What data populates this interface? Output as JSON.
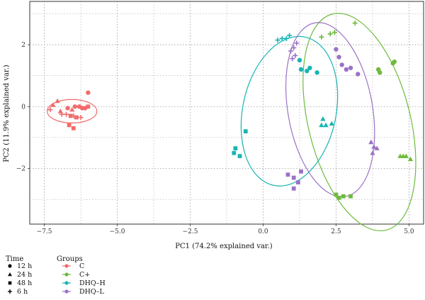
{
  "chart_data": {
    "type": "scatter",
    "title": "",
    "xlabel": "PC1 (74.2% explained var.)",
    "ylabel": "PC2 (11.9% explained var.)",
    "xlim": [
      -8.0,
      5.5
    ],
    "ylim": [
      -3.8,
      3.4
    ],
    "x_ticks": [
      -7.5,
      -5.0,
      -2.5,
      0.0,
      2.5,
      5.0
    ],
    "x_tick_labels": [
      "−7.5",
      "−5.0",
      "−2.5",
      "0.0",
      "2.5",
      "5.0"
    ],
    "y_ticks": [
      -2,
      0,
      2
    ],
    "y_tick_labels": [
      "−2",
      "0",
      "2"
    ],
    "grid": true,
    "legend_placement": "bottom-left",
    "time_legend": {
      "title": "Time",
      "entries": [
        {
          "label": "12 h",
          "shape": "circle"
        },
        {
          "label": "24 h",
          "shape": "triangle"
        },
        {
          "label": "48 h",
          "shape": "square"
        },
        {
          "label": "6 h",
          "shape": "plus"
        }
      ]
    },
    "group_legend": {
      "title": "Groups",
      "entries": [
        {
          "label": "C",
          "color": "#f26b6b"
        },
        {
          "label": "C+",
          "color": "#6dbb3c"
        },
        {
          "label": "DHQ–H",
          "color": "#17b5b3"
        },
        {
          "label": "DHQ–L",
          "color": "#9b72c5"
        }
      ]
    },
    "series": [
      {
        "name": "C",
        "color": "#f26b6b",
        "ellipse": {
          "cx": -6.55,
          "cy": -0.15,
          "rx": 0.85,
          "ry": 0.38,
          "angle": 0
        },
        "points": [
          {
            "x": -6.0,
            "y": 0.45,
            "shape": "circle"
          },
          {
            "x": -6.7,
            "y": -0.05,
            "shape": "circle"
          },
          {
            "x": -6.45,
            "y": 0.0,
            "shape": "circle"
          },
          {
            "x": -6.3,
            "y": 0.0,
            "shape": "circle"
          },
          {
            "x": -6.2,
            "y": -0.05,
            "shape": "circle"
          },
          {
            "x": -6.1,
            "y": -0.05,
            "shape": "circle"
          },
          {
            "x": -7.2,
            "y": 0.05,
            "shape": "triangle"
          },
          {
            "x": -7.05,
            "y": 0.18,
            "shape": "triangle"
          },
          {
            "x": -6.55,
            "y": -0.1,
            "shape": "triangle"
          },
          {
            "x": -6.95,
            "y": -0.15,
            "shape": "triangle"
          },
          {
            "x": -6.0,
            "y": 0.0,
            "shape": "square"
          },
          {
            "x": -6.6,
            "y": -0.3,
            "shape": "square"
          },
          {
            "x": -6.4,
            "y": -0.35,
            "shape": "square"
          },
          {
            "x": -6.65,
            "y": -0.6,
            "shape": "square"
          },
          {
            "x": -6.5,
            "y": -0.7,
            "shape": "square"
          },
          {
            "x": -7.3,
            "y": -0.1,
            "shape": "plus"
          },
          {
            "x": -6.9,
            "y": -0.25,
            "shape": "plus"
          },
          {
            "x": -6.75,
            "y": -0.25,
            "shape": "plus"
          },
          {
            "x": -6.5,
            "y": -0.3,
            "shape": "plus"
          },
          {
            "x": -6.25,
            "y": -0.35,
            "shape": "plus"
          }
        ]
      },
      {
        "name": "C+",
        "color": "#6dbb3c",
        "ellipse": {
          "cx": 3.3,
          "cy": -0.5,
          "rx": 1.75,
          "ry": 3.6,
          "angle": -14
        },
        "points": [
          {
            "x": 3.95,
            "y": 1.2,
            "shape": "circle"
          },
          {
            "x": 4.0,
            "y": 1.1,
            "shape": "circle"
          },
          {
            "x": 4.5,
            "y": 1.45,
            "shape": "circle"
          },
          {
            "x": 4.45,
            "y": 1.4,
            "shape": "circle"
          },
          {
            "x": 4.7,
            "y": -1.6,
            "shape": "triangle"
          },
          {
            "x": 4.8,
            "y": -1.6,
            "shape": "triangle"
          },
          {
            "x": 4.9,
            "y": -1.6,
            "shape": "triangle"
          },
          {
            "x": 5.05,
            "y": -1.7,
            "shape": "triangle"
          },
          {
            "x": 2.5,
            "y": -2.85,
            "shape": "square"
          },
          {
            "x": 2.6,
            "y": -2.95,
            "shape": "square"
          },
          {
            "x": 2.75,
            "y": -2.9,
            "shape": "square"
          },
          {
            "x": 3.0,
            "y": -2.9,
            "shape": "square"
          },
          {
            "x": 2.3,
            "y": 2.35,
            "shape": "plus"
          },
          {
            "x": 2.45,
            "y": 2.4,
            "shape": "plus"
          },
          {
            "x": 2.0,
            "y": 2.25,
            "shape": "plus"
          },
          {
            "x": 3.15,
            "y": 2.7,
            "shape": "plus"
          }
        ]
      },
      {
        "name": "DHQ–H",
        "color": "#17b5b3",
        "ellipse": {
          "cx": 0.9,
          "cy": -0.15,
          "rx": 1.6,
          "ry": 2.45,
          "angle": 12
        },
        "points": [
          {
            "x": 1.25,
            "y": 1.5,
            "shape": "circle"
          },
          {
            "x": 1.3,
            "y": 1.2,
            "shape": "circle"
          },
          {
            "x": 1.5,
            "y": 1.15,
            "shape": "circle"
          },
          {
            "x": 1.6,
            "y": 1.25,
            "shape": "circle"
          },
          {
            "x": 1.85,
            "y": 1.1,
            "shape": "circle"
          },
          {
            "x": 2.0,
            "y": -0.6,
            "shape": "triangle"
          },
          {
            "x": 2.05,
            "y": -0.4,
            "shape": "triangle"
          },
          {
            "x": 2.15,
            "y": -0.6,
            "shape": "triangle"
          },
          {
            "x": 2.35,
            "y": -0.55,
            "shape": "triangle"
          },
          {
            "x": -0.6,
            "y": -0.8,
            "shape": "square"
          },
          {
            "x": -0.95,
            "y": -1.35,
            "shape": "square"
          },
          {
            "x": -1.0,
            "y": -1.5,
            "shape": "square"
          },
          {
            "x": -0.8,
            "y": -1.6,
            "shape": "square"
          },
          {
            "x": 0.5,
            "y": 2.15,
            "shape": "plus"
          },
          {
            "x": 0.65,
            "y": 2.2,
            "shape": "plus"
          },
          {
            "x": 0.8,
            "y": 2.2,
            "shape": "plus"
          },
          {
            "x": 0.9,
            "y": 2.3,
            "shape": "plus"
          }
        ]
      },
      {
        "name": "DHQ–L",
        "color": "#9b72c5",
        "ellipse": {
          "cx": 2.3,
          "cy": -0.1,
          "rx": 1.45,
          "ry": 2.85,
          "angle": -10
        },
        "points": [
          {
            "x": 2.5,
            "y": 1.85,
            "shape": "circle"
          },
          {
            "x": 2.6,
            "y": 1.6,
            "shape": "circle"
          },
          {
            "x": 2.7,
            "y": 1.35,
            "shape": "circle"
          },
          {
            "x": 2.85,
            "y": 1.2,
            "shape": "circle"
          },
          {
            "x": 3.0,
            "y": 1.25,
            "shape": "circle"
          },
          {
            "x": 3.25,
            "y": 1.05,
            "shape": "circle"
          },
          {
            "x": 3.7,
            "y": -1.15,
            "shape": "triangle"
          },
          {
            "x": 3.8,
            "y": -1.3,
            "shape": "triangle"
          },
          {
            "x": 3.75,
            "y": -1.5,
            "shape": "triangle"
          },
          {
            "x": 3.9,
            "y": -1.35,
            "shape": "triangle"
          },
          {
            "x": 0.85,
            "y": -2.2,
            "shape": "square"
          },
          {
            "x": 1.05,
            "y": -2.3,
            "shape": "square"
          },
          {
            "x": 1.2,
            "y": -2.45,
            "shape": "square"
          },
          {
            "x": 1.3,
            "y": -2.1,
            "shape": "square"
          },
          {
            "x": 1.05,
            "y": -2.65,
            "shape": "square"
          },
          {
            "x": 1.15,
            "y": 2.05,
            "shape": "plus"
          },
          {
            "x": 1.05,
            "y": 1.9,
            "shape": "plus"
          },
          {
            "x": 0.95,
            "y": 1.8,
            "shape": "plus"
          },
          {
            "x": 1.1,
            "y": 1.65,
            "shape": "plus"
          },
          {
            "x": 1.0,
            "y": 1.55,
            "shape": "plus"
          }
        ]
      }
    ]
  }
}
